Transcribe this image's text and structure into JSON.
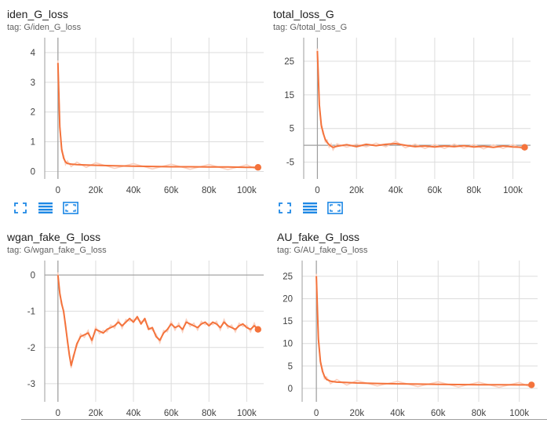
{
  "colors": {
    "line": "#f4733c",
    "smooth_bg": "#fbd0bf",
    "grid": "#dcdcdc",
    "axis": "#9e9e9e",
    "icon": "#1e88e5"
  },
  "controls": [
    {
      "name": "fit-domain-icon"
    },
    {
      "name": "toggle-log-scale-icon"
    },
    {
      "name": "expand-chart-icon"
    }
  ],
  "chart_data": [
    {
      "type": "line",
      "title": "iden_G_loss",
      "subtitle": "tag: G/iden_G_loss",
      "xlim": [
        -7000,
        109000
      ],
      "ylim": [
        -0.25,
        4.5
      ],
      "xticks": [
        0,
        20000,
        40000,
        60000,
        80000,
        100000
      ],
      "xtick_labels": [
        "0",
        "20k",
        "40k",
        "60k",
        "80k",
        "100k"
      ],
      "yticks": [
        0,
        1,
        2,
        3,
        4
      ],
      "ytick_labels": [
        "0",
        "1",
        "2",
        "3",
        "4"
      ],
      "hline": null,
      "series": [
        {
          "x": [
            0,
            500,
            1000,
            2000,
            3000,
            4000,
            5000,
            7000,
            10000,
            15000,
            20000,
            30000,
            40000,
            50000,
            60000,
            70000,
            80000,
            90000,
            100000,
            106000
          ],
          "y": [
            3.65,
            2.6,
            1.5,
            0.75,
            0.45,
            0.32,
            0.27,
            0.25,
            0.23,
            0.22,
            0.21,
            0.19,
            0.18,
            0.17,
            0.16,
            0.16,
            0.15,
            0.15,
            0.14,
            0.14
          ]
        }
      ]
    },
    {
      "type": "line",
      "title": "total_loss_G",
      "subtitle": "tag: G/total_loss_G",
      "xlim": [
        -7000,
        109000
      ],
      "ylim": [
        -10,
        32
      ],
      "xticks": [
        0,
        20000,
        40000,
        60000,
        80000,
        100000
      ],
      "xtick_labels": [
        "0",
        "20k",
        "40k",
        "60k",
        "80k",
        "100k"
      ],
      "yticks": [
        25,
        15,
        5,
        -5
      ],
      "ytick_labels": [
        "25",
        "15",
        "5",
        "-5"
      ],
      "hline": 0,
      "series": [
        {
          "x": [
            0,
            500,
            1000,
            2000,
            3000,
            4000,
            5000,
            6000,
            7000,
            8000,
            10000,
            15000,
            20000,
            25000,
            30000,
            35000,
            40000,
            45000,
            50000,
            55000,
            60000,
            65000,
            70000,
            75000,
            80000,
            85000,
            90000,
            95000,
            100000,
            106000
          ],
          "y": [
            28,
            20,
            12,
            6,
            3.5,
            1.8,
            0.8,
            0.2,
            -0.3,
            -0.6,
            -0.3,
            0.2,
            -0.4,
            0.3,
            -0.1,
            0.3,
            0.5,
            0.0,
            -0.4,
            -0.2,
            -0.5,
            -0.2,
            -0.4,
            -0.1,
            -0.5,
            -0.3,
            -0.6,
            -0.2,
            -0.5,
            -0.6
          ]
        }
      ]
    },
    {
      "type": "line",
      "title": "wgan_fake_G_loss",
      "subtitle": "tag: G/wgan_fake_G_loss",
      "xlim": [
        -7000,
        109000
      ],
      "ylim": [
        -3.5,
        0.4
      ],
      "xticks": [
        0,
        20000,
        40000,
        60000,
        80000,
        100000
      ],
      "xtick_labels": [
        "0",
        "20k",
        "40k",
        "60k",
        "80k",
        "100k"
      ],
      "yticks": [
        0,
        -1,
        -2,
        -3
      ],
      "ytick_labels": [
        "0",
        "-1",
        "-2",
        "-3"
      ],
      "hline": 0,
      "series": [
        {
          "x": [
            0,
            1000,
            2000,
            3000,
            4000,
            5000,
            6000,
            7000,
            8000,
            10000,
            12000,
            14000,
            16000,
            18000,
            20000,
            22000,
            24000,
            26000,
            28000,
            30000,
            32000,
            34000,
            36000,
            38000,
            40000,
            42000,
            44000,
            46000,
            48000,
            50000,
            52000,
            54000,
            56000,
            58000,
            60000,
            62000,
            64000,
            66000,
            68000,
            70000,
            72000,
            74000,
            76000,
            78000,
            80000,
            82000,
            84000,
            86000,
            88000,
            90000,
            92000,
            94000,
            96000,
            98000,
            100000,
            102000,
            104000,
            106000
          ],
          "y": [
            0.0,
            -0.5,
            -0.8,
            -1.0,
            -1.4,
            -1.8,
            -2.2,
            -2.5,
            -2.3,
            -1.9,
            -1.7,
            -1.65,
            -1.6,
            -1.8,
            -1.5,
            -1.55,
            -1.6,
            -1.5,
            -1.45,
            -1.4,
            -1.3,
            -1.4,
            -1.3,
            -1.2,
            -1.3,
            -1.15,
            -1.35,
            -1.2,
            -1.5,
            -1.45,
            -1.7,
            -1.8,
            -1.6,
            -1.5,
            -1.35,
            -1.45,
            -1.4,
            -1.5,
            -1.3,
            -1.35,
            -1.4,
            -1.45,
            -1.35,
            -1.3,
            -1.4,
            -1.3,
            -1.35,
            -1.45,
            -1.3,
            -1.4,
            -1.45,
            -1.5,
            -1.4,
            -1.35,
            -1.45,
            -1.5,
            -1.4,
            -1.5
          ]
        }
      ]
    },
    {
      "type": "line",
      "title": "AU_fake_G_loss",
      "subtitle": "tag: G/AU_fake_G_loss",
      "xlim": [
        -7000,
        109000
      ],
      "ylim": [
        -3,
        28.5
      ],
      "xticks": [
        0,
        20000,
        40000,
        60000,
        80000,
        100000
      ],
      "xtick_labels": [
        "0",
        "20k",
        "40k",
        "60k",
        "80k",
        "100k"
      ],
      "yticks": [
        0,
        5,
        10,
        15,
        20,
        25
      ],
      "ytick_labels": [
        "0",
        "5",
        "10",
        "15",
        "20",
        "25"
      ],
      "hline": null,
      "series": [
        {
          "x": [
            0,
            500,
            1000,
            2000,
            3000,
            4000,
            5000,
            7000,
            10000,
            15000,
            20000,
            30000,
            40000,
            50000,
            60000,
            70000,
            80000,
            90000,
            100000,
            106000
          ],
          "y": [
            25,
            18,
            11,
            6,
            3.8,
            2.7,
            2.0,
            1.6,
            1.4,
            1.3,
            1.2,
            1.1,
            1.0,
            0.95,
            0.9,
            0.85,
            0.82,
            0.8,
            0.78,
            0.78
          ]
        }
      ]
    }
  ]
}
